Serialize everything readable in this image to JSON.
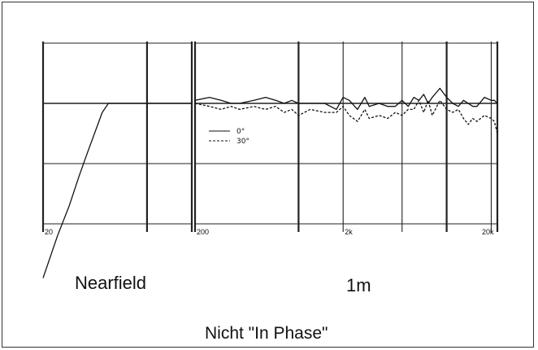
{
  "chart_data": {
    "type": "line",
    "scale": "log",
    "grid": true,
    "legend_position": "left, inside right panel",
    "colors": {
      "line": "#111111",
      "grid": "#222222"
    },
    "panels": [
      {
        "name": "Nearfield",
        "xlim": [
          20,
          200
        ],
        "tick_labels": [
          "20"
        ],
        "series": [
          {
            "style": "solid",
            "x": [
              20,
              25,
              30,
              35,
              40,
              50,
              55,
              60,
              70,
              80,
              90,
              100,
              120,
              150,
              170,
              200
            ],
            "y": [
              -2.9,
              -2.2,
              -1.7,
              -1.2,
              -0.8,
              -0.15,
              0.0,
              0.0,
              0.0,
              0.0,
              0.0,
              0.0,
              0.0,
              0.0,
              0.0,
              0.0
            ]
          }
        ]
      },
      {
        "name": "1m",
        "xlim": [
          200,
          22000
        ],
        "tick_labels": [
          "200",
          "2k",
          "20k"
        ],
        "legend": [
          "0°",
          "30°"
        ],
        "series": [
          {
            "name": "0°",
            "style": "solid",
            "x": [
              200,
              250,
              300,
              350,
              400,
              500,
              600,
              700,
              800,
              900,
              1000,
              1200,
              1500,
              1800,
              2000,
              2200,
              2500,
              2800,
              3000,
              3500,
              4000,
              4500,
              5000,
              5500,
              6000,
              6500,
              7000,
              7500,
              8000,
              9000,
              10000,
              11000,
              12000,
              13000,
              14000,
              15000,
              16000,
              18000,
              20000,
              21000,
              22000
            ],
            "y": [
              0.05,
              0.1,
              0.05,
              0.0,
              0.0,
              0.05,
              0.1,
              0.05,
              0.0,
              0.05,
              0.0,
              0.0,
              0.0,
              -0.1,
              0.1,
              0.05,
              -0.1,
              0.1,
              -0.05,
              0.0,
              -0.05,
              -0.05,
              0.05,
              -0.05,
              0.1,
              0.05,
              0.15,
              0.0,
              0.1,
              0.25,
              0.1,
              0.0,
              -0.05,
              0.05,
              0.0,
              -0.05,
              -0.05,
              0.1,
              0.05,
              0.05,
              0.0
            ]
          },
          {
            "name": "30°",
            "style": "dashed",
            "x": [
              200,
              250,
              300,
              350,
              400,
              500,
              600,
              700,
              800,
              900,
              1000,
              1200,
              1500,
              1800,
              2000,
              2200,
              2500,
              2800,
              3000,
              3500,
              4000,
              4500,
              5000,
              5500,
              6000,
              6500,
              7000,
              7500,
              8000,
              9000,
              10000,
              11000,
              12000,
              13000,
              14000,
              15000,
              16000,
              18000,
              20000,
              21000,
              22000
            ],
            "y": [
              0.0,
              -0.05,
              -0.1,
              -0.05,
              -0.1,
              -0.05,
              -0.1,
              -0.05,
              -0.15,
              -0.1,
              -0.2,
              -0.1,
              -0.15,
              -0.15,
              -0.05,
              -0.2,
              -0.3,
              -0.1,
              -0.25,
              -0.2,
              -0.25,
              -0.15,
              -0.2,
              -0.1,
              -0.1,
              0.05,
              -0.15,
              0.05,
              -0.2,
              0.05,
              -0.1,
              -0.15,
              -0.1,
              -0.25,
              -0.35,
              -0.25,
              -0.3,
              -0.2,
              -0.25,
              -0.3,
              -0.5
            ]
          }
        ]
      }
    ]
  },
  "captions": {
    "nearfield": "Nearfield",
    "onemeter": "1m",
    "note": "Nicht  \"In Phase\""
  }
}
